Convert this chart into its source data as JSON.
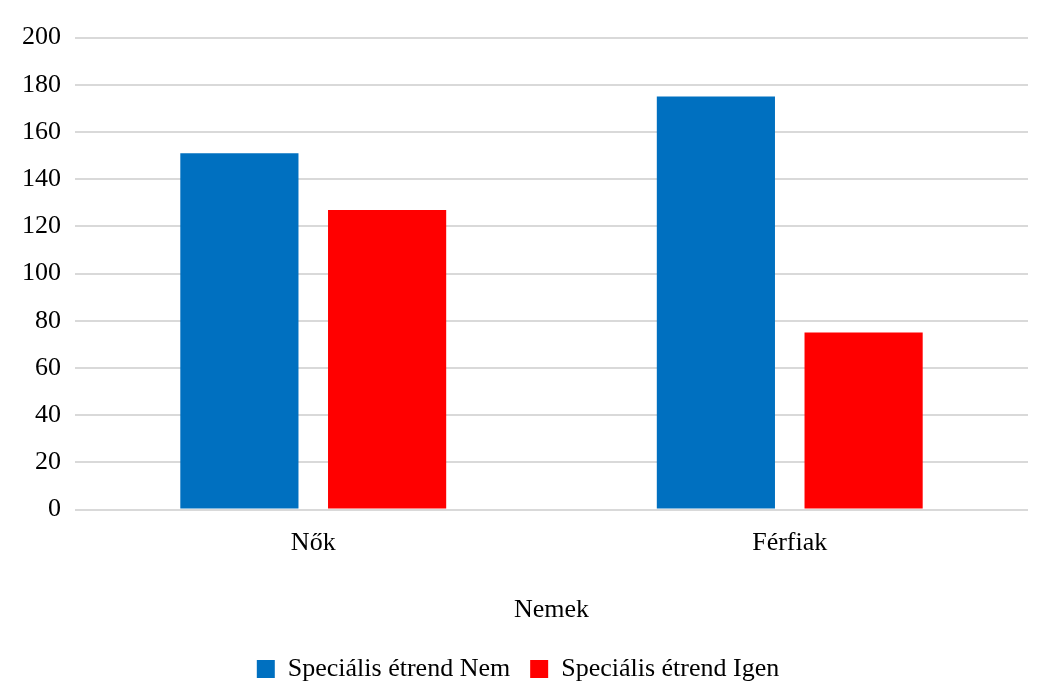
{
  "chart_data": {
    "type": "bar",
    "xlabel": "Nemek",
    "categories": [
      "Nők",
      "Férfiak"
    ],
    "series": [
      {
        "name": "Speciális étrend Nem",
        "color": "#0070c0",
        "values": [
          151,
          175
        ]
      },
      {
        "name": "Speciális étrend Igen",
        "color": "#ff0000",
        "values": [
          127,
          75
        ]
      }
    ],
    "ylim": [
      0,
      200
    ],
    "yticks": [
      0,
      20,
      40,
      60,
      80,
      100,
      120,
      140,
      160,
      180,
      200
    ],
    "grid": "y",
    "legend": "bottom"
  }
}
